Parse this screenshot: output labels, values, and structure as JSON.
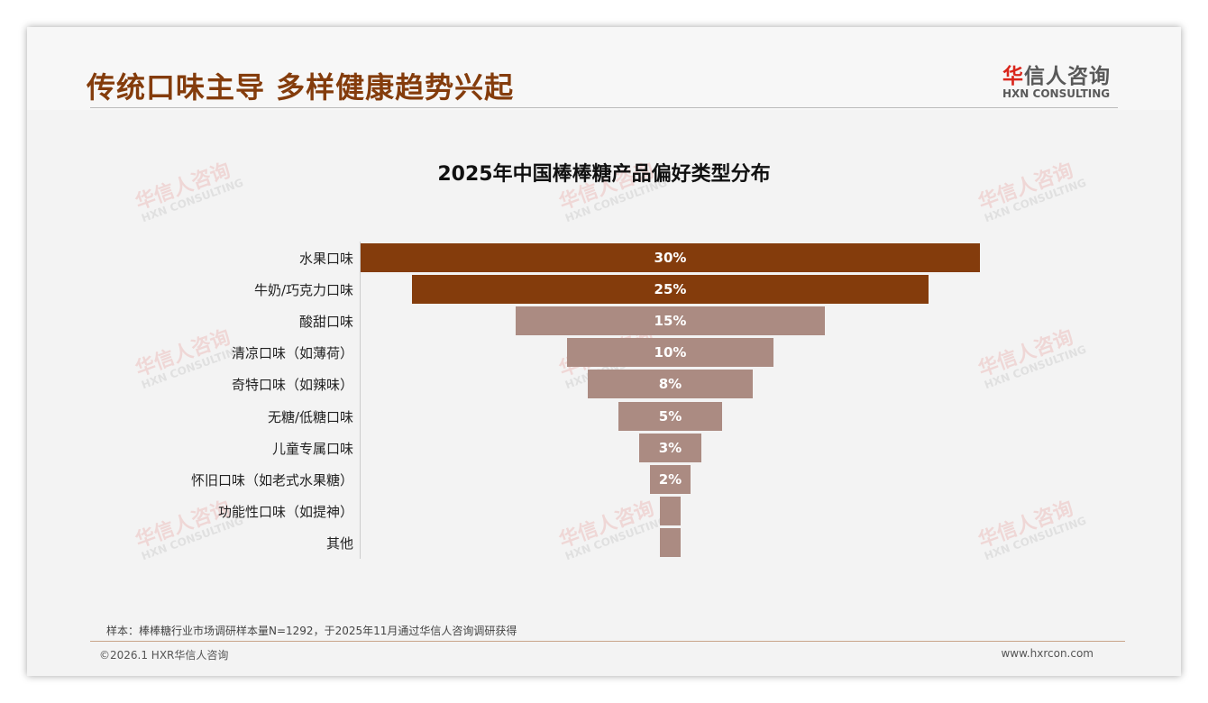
{
  "header": {
    "title": "传统口味主导 多样健康趋势兴起",
    "logo_cn_mark": "华",
    "logo_cn_rest": "信人咨询",
    "logo_en": "HXN CONSULTING"
  },
  "watermark": {
    "cn": "华信人咨询",
    "en": "HXN CONSULTING"
  },
  "chart_data": {
    "type": "funnel",
    "title": "2025年中国棒棒糖产品偏好类型分布",
    "categories": [
      "水果口味",
      "牛奶/巧克力口味",
      "酸甜口味",
      "清凉口味（如薄荷）",
      "奇特口味（如辣味）",
      "无糖/低糖口味",
      "儿童专属口味",
      "怀旧口味（如老式水果糖）",
      "功能性口味（如提神）",
      "其他"
    ],
    "values": [
      30,
      25,
      15,
      10,
      8,
      5,
      3,
      2,
      1,
      1
    ],
    "labels": [
      "30%",
      "25%",
      "15%",
      "10%",
      "8%",
      "5%",
      "3%",
      "2%",
      "",
      ""
    ],
    "colors": [
      "#843c0c",
      "#843c0c",
      "#ab8b82",
      "#ab8b82",
      "#ab8b82",
      "#ab8b82",
      "#ab8b82",
      "#ab8b82",
      "#ab8b82",
      "#ab8b82"
    ]
  },
  "footer": {
    "note": "样本：棒棒糖行业市场调研样本量N=1292，于2025年11月通过华信人咨询调研获得",
    "copyright": "©2026.1 HXR华信人咨询",
    "url": "www.hxrcon.com"
  }
}
